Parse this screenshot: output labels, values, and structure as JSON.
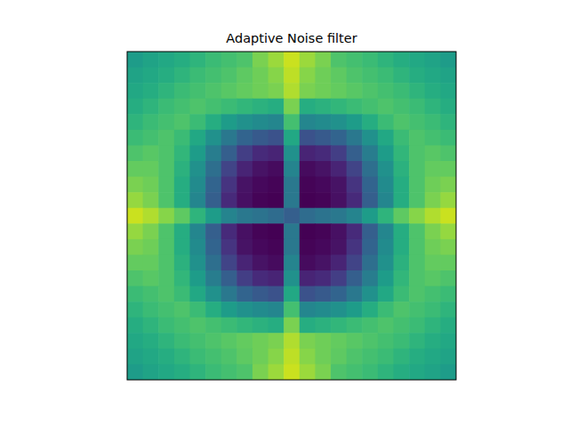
{
  "chart_data": {
    "type": "heatmap",
    "title": "Adaptive Noise filter",
    "tick_labels": false,
    "zlim": [
      0,
      1
    ],
    "cells": [
      [
        0.55,
        0.58,
        0.6,
        0.62,
        0.65,
        0.68,
        0.7,
        0.72,
        0.8,
        0.85,
        0.92,
        0.85,
        0.8,
        0.72,
        0.7,
        0.68,
        0.65,
        0.62,
        0.6,
        0.58,
        0.55
      ],
      [
        0.58,
        0.6,
        0.62,
        0.65,
        0.68,
        0.7,
        0.72,
        0.75,
        0.78,
        0.82,
        0.9,
        0.82,
        0.78,
        0.75,
        0.72,
        0.7,
        0.68,
        0.65,
        0.62,
        0.6,
        0.58
      ],
      [
        0.6,
        0.62,
        0.65,
        0.68,
        0.7,
        0.72,
        0.74,
        0.76,
        0.78,
        0.8,
        0.88,
        0.8,
        0.78,
        0.76,
        0.74,
        0.72,
        0.7,
        0.68,
        0.65,
        0.62,
        0.6
      ],
      [
        0.62,
        0.65,
        0.68,
        0.7,
        0.72,
        0.7,
        0.68,
        0.66,
        0.64,
        0.62,
        0.8,
        0.62,
        0.64,
        0.66,
        0.68,
        0.7,
        0.72,
        0.7,
        0.68,
        0.65,
        0.62
      ],
      [
        0.65,
        0.68,
        0.7,
        0.72,
        0.68,
        0.62,
        0.55,
        0.5,
        0.48,
        0.46,
        0.7,
        0.46,
        0.48,
        0.5,
        0.55,
        0.62,
        0.68,
        0.72,
        0.7,
        0.68,
        0.65
      ],
      [
        0.68,
        0.7,
        0.72,
        0.68,
        0.6,
        0.5,
        0.4,
        0.32,
        0.28,
        0.25,
        0.6,
        0.25,
        0.28,
        0.32,
        0.4,
        0.5,
        0.6,
        0.68,
        0.72,
        0.7,
        0.68
      ],
      [
        0.72,
        0.74,
        0.72,
        0.66,
        0.55,
        0.42,
        0.3,
        0.18,
        0.12,
        0.1,
        0.5,
        0.1,
        0.12,
        0.18,
        0.3,
        0.42,
        0.55,
        0.66,
        0.72,
        0.74,
        0.72
      ],
      [
        0.76,
        0.76,
        0.72,
        0.64,
        0.5,
        0.36,
        0.2,
        0.1,
        0.05,
        0.03,
        0.45,
        0.03,
        0.05,
        0.1,
        0.2,
        0.36,
        0.5,
        0.64,
        0.72,
        0.76,
        0.76
      ],
      [
        0.8,
        0.78,
        0.72,
        0.62,
        0.48,
        0.32,
        0.15,
        0.05,
        0.02,
        0.01,
        0.4,
        0.01,
        0.02,
        0.05,
        0.15,
        0.32,
        0.48,
        0.62,
        0.72,
        0.78,
        0.8
      ],
      [
        0.84,
        0.8,
        0.72,
        0.62,
        0.46,
        0.3,
        0.12,
        0.04,
        0.01,
        0.0,
        0.4,
        0.0,
        0.01,
        0.04,
        0.12,
        0.3,
        0.46,
        0.62,
        0.72,
        0.8,
        0.84
      ],
      [
        0.92,
        0.88,
        0.82,
        0.75,
        0.65,
        0.55,
        0.45,
        0.4,
        0.38,
        0.35,
        0.3,
        0.35,
        0.38,
        0.4,
        0.45,
        0.55,
        0.65,
        0.75,
        0.82,
        0.88,
        0.92
      ],
      [
        0.84,
        0.8,
        0.72,
        0.62,
        0.46,
        0.3,
        0.12,
        0.04,
        0.01,
        0.0,
        0.4,
        0.0,
        0.01,
        0.04,
        0.12,
        0.3,
        0.46,
        0.62,
        0.72,
        0.8,
        0.84
      ],
      [
        0.8,
        0.78,
        0.72,
        0.62,
        0.48,
        0.32,
        0.15,
        0.05,
        0.02,
        0.01,
        0.4,
        0.01,
        0.02,
        0.05,
        0.15,
        0.32,
        0.48,
        0.62,
        0.72,
        0.78,
        0.8
      ],
      [
        0.76,
        0.76,
        0.72,
        0.64,
        0.5,
        0.36,
        0.2,
        0.1,
        0.05,
        0.03,
        0.45,
        0.03,
        0.05,
        0.1,
        0.2,
        0.36,
        0.5,
        0.64,
        0.72,
        0.76,
        0.76
      ],
      [
        0.72,
        0.74,
        0.72,
        0.66,
        0.55,
        0.42,
        0.3,
        0.18,
        0.12,
        0.1,
        0.5,
        0.1,
        0.12,
        0.18,
        0.3,
        0.42,
        0.55,
        0.66,
        0.72,
        0.74,
        0.72
      ],
      [
        0.68,
        0.7,
        0.72,
        0.68,
        0.6,
        0.5,
        0.4,
        0.32,
        0.28,
        0.25,
        0.6,
        0.25,
        0.28,
        0.32,
        0.4,
        0.5,
        0.6,
        0.68,
        0.72,
        0.7,
        0.68
      ],
      [
        0.65,
        0.68,
        0.7,
        0.72,
        0.68,
        0.62,
        0.55,
        0.5,
        0.48,
        0.46,
        0.7,
        0.46,
        0.48,
        0.5,
        0.55,
        0.62,
        0.68,
        0.72,
        0.7,
        0.68,
        0.65
      ],
      [
        0.62,
        0.65,
        0.68,
        0.7,
        0.72,
        0.7,
        0.68,
        0.66,
        0.64,
        0.62,
        0.8,
        0.62,
        0.64,
        0.66,
        0.68,
        0.7,
        0.72,
        0.7,
        0.68,
        0.65,
        0.62
      ],
      [
        0.6,
        0.62,
        0.65,
        0.68,
        0.7,
        0.72,
        0.74,
        0.76,
        0.78,
        0.8,
        0.88,
        0.8,
        0.78,
        0.76,
        0.74,
        0.72,
        0.7,
        0.68,
        0.65,
        0.62,
        0.6
      ],
      [
        0.58,
        0.6,
        0.62,
        0.65,
        0.68,
        0.7,
        0.72,
        0.75,
        0.78,
        0.82,
        0.9,
        0.82,
        0.78,
        0.75,
        0.72,
        0.7,
        0.68,
        0.65,
        0.62,
        0.6,
        0.58
      ],
      [
        0.55,
        0.58,
        0.6,
        0.62,
        0.65,
        0.68,
        0.7,
        0.72,
        0.8,
        0.85,
        0.92,
        0.85,
        0.8,
        0.72,
        0.7,
        0.68,
        0.65,
        0.62,
        0.6,
        0.58,
        0.55
      ]
    ]
  }
}
